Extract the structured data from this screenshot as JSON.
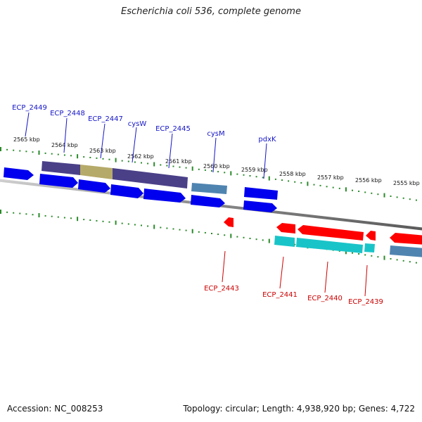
{
  "title": "Escherichia coli 536, complete genome",
  "footer": {
    "accession": "Accession: NC_008253",
    "summary": "Topology: circular; Length: 4,938,920 bp; Genes: 4,722"
  },
  "ticks": [
    "2565 kbp",
    "2564 kbp",
    "2563 kbp",
    "2562 kbp",
    "2561 kbp",
    "2560 kbp",
    "2559 kbp",
    "2558 kbp",
    "2557 kbp",
    "2556 kbp",
    "2555 kbp"
  ],
  "genes_top": [
    "ECP_2449",
    "ECP_2448",
    "ECP_2447",
    "cysW",
    "ECP_2445",
    "cysM",
    "pdxK"
  ],
  "genes_bottom": [
    "ECP_2443",
    "ECP_2441",
    "ECP_2440",
    "ECP_2439"
  ],
  "colors": {
    "forward_gene": "#0000ee",
    "reverse_gene": "#ff0000",
    "forward_label": "#1414c8",
    "reverse_label": "#cc0000",
    "domain_purple": "#4a4088",
    "domain_olive": "#b6aa6a",
    "domain_steel": "#4f84b0",
    "domain_cyan": "#19c4c8",
    "tick": "#2a8a2a",
    "backbone": "#888888"
  }
}
